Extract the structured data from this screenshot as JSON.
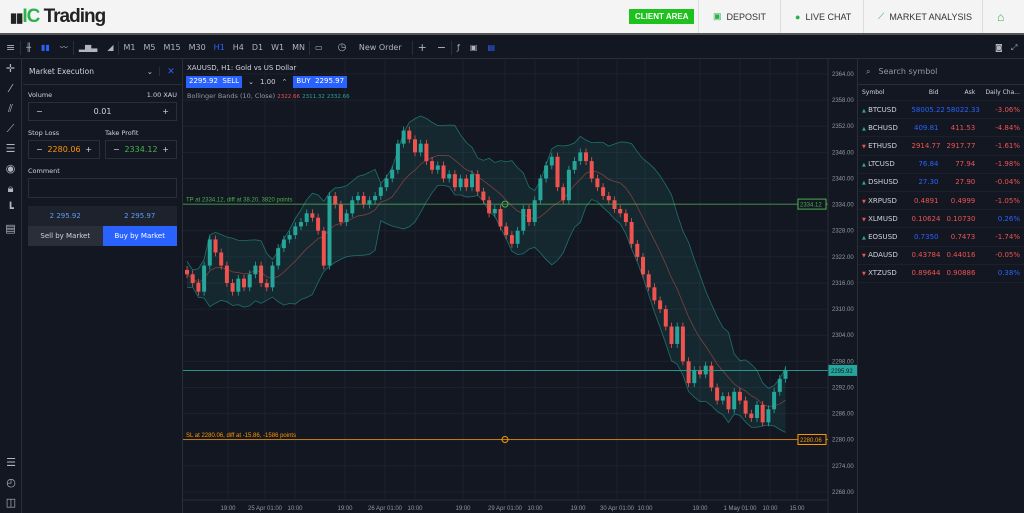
{
  "header": {
    "logo": "IC Trading",
    "logo_prefix": "IC",
    "logo_suffix": " Trading",
    "client_area": "CLIENT AREA",
    "deposit": "DEPOSIT",
    "live_chat": "LIVE CHAT",
    "market_analysis": "MARKET ANALYSIS"
  },
  "toolbar": {
    "timeframes": [
      "M1",
      "M5",
      "M15",
      "M30",
      "H1",
      "H4",
      "D1",
      "W1",
      "MN"
    ],
    "active_timeframe": "H1",
    "new_order": "New Order"
  },
  "order_panel": {
    "mode": "Market Execution",
    "volume_label": "Volume",
    "volume_unit": "1.00 XAU",
    "volume": "0.01",
    "stop_loss_label": "Stop Loss",
    "stop_loss": "2280.06",
    "take_profit_label": "Take Profit",
    "take_profit": "2334.12",
    "comment_label": "Comment",
    "comment": "",
    "sell_price": "2 295.92",
    "buy_price": "2 295.97",
    "sell_button": "Sell by Market",
    "buy_button": "Buy by Market"
  },
  "chart": {
    "title": "XAUUSD, H1: Gold vs US Dollar",
    "sell_price": "2295.92",
    "sell_label": "SELL",
    "quantity": "1.00",
    "buy_label": "BUY",
    "buy_price": "2295.97",
    "indicator": "Bollinger Bands (10, Close)",
    "indicator_values": [
      "2322.66",
      "2311.32",
      "2332.66"
    ],
    "tp_line": "TP at 2334.12, diff at 38.20, 3820 points",
    "sl_line": "SL at 2280.06, diff at -15.86, -1586 points",
    "tp_tag": "2334.12",
    "sl_tag": "2280.06",
    "price_tag": "2295.92"
  },
  "chart_data": {
    "type": "candlestick",
    "symbol": "XAUUSD",
    "timeframe": "H1",
    "ylim": [
      2265,
      2366
    ],
    "y_ticks": [
      "2364.00",
      "2358.00",
      "2352.00",
      "2346.00",
      "2340.00",
      "2334.00",
      "2328.00",
      "2322.00",
      "2316.00",
      "2310.00",
      "2304.00",
      "2298.00",
      "2292.00",
      "2286.00",
      "2280.00",
      "2274.00",
      "2268.00"
    ],
    "x_ticks": [
      "19:00",
      "25 Apr 01:00",
      "10:00",
      "19:00",
      "26 Apr 01:00",
      "10:00",
      "19:00",
      "29 Apr 01:00",
      "10:00",
      "19:00",
      "30 Apr 01:00",
      "10:00",
      "19:00",
      "1 May 01:00",
      "10:00",
      "15:00"
    ],
    "tp": 2334.12,
    "sl": 2280.06,
    "current": 2295.92,
    "closes": [
      2318,
      2316,
      2314,
      2320,
      2326,
      2323,
      2320,
      2316,
      2314,
      2317,
      2315,
      2318,
      2320,
      2316,
      2315,
      2320,
      2324,
      2326,
      2327,
      2329,
      2330,
      2332,
      2331,
      2328,
      2320,
      2336,
      2334,
      2330,
      2332,
      2335,
      2336,
      2334,
      2335,
      2336,
      2338,
      2340,
      2342,
      2348,
      2351,
      2349,
      2346,
      2348,
      2344,
      2342,
      2343,
      2340,
      2341,
      2338,
      2340,
      2338,
      2341,
      2337,
      2335,
      2332,
      2333,
      2329,
      2327,
      2325,
      2328,
      2333,
      2330,
      2335,
      2340,
      2343,
      2345,
      2338,
      2335,
      2342,
      2344,
      2346,
      2344,
      2340,
      2338,
      2336,
      2335,
      2333,
      2332,
      2330,
      2325,
      2322,
      2318,
      2315,
      2312,
      2310,
      2306,
      2302,
      2306,
      2298,
      2293,
      2296,
      2295,
      2297,
      2292,
      2289,
      2290,
      2287,
      2291,
      2289,
      2286,
      2285,
      2288,
      2284,
      2287,
      2291,
      2294,
      2296
    ],
    "bollinger": {
      "period": 10,
      "source": "Close"
    },
    "colors": {
      "up": "#26a69a",
      "down": "#ef5350",
      "tp": "#4caf50",
      "sl": "#ff9800"
    }
  },
  "watchlist": {
    "search_placeholder": "Search symbol",
    "columns": [
      "Symbol",
      "Bid",
      "Ask",
      "Daily Cha..."
    ],
    "rows": [
      {
        "symbol": "BTCUSD",
        "dir": "up",
        "bid": "58005.22",
        "ask": "58022.33",
        "change": "-3.06%",
        "bid_c": "bl",
        "ask_c": "bl",
        "ch_c": "dn"
      },
      {
        "symbol": "BCHUSD",
        "dir": "up",
        "bid": "409.81",
        "ask": "411.53",
        "change": "-4.84%",
        "bid_c": "bl",
        "ask_c": "dn",
        "ch_c": "dn"
      },
      {
        "symbol": "ETHUSD",
        "dir": "dn",
        "bid": "2914.77",
        "ask": "2917.77",
        "change": "-1.61%",
        "bid_c": "dn",
        "ask_c": "dn",
        "ch_c": "dn"
      },
      {
        "symbol": "LTCUSD",
        "dir": "up",
        "bid": "76.84",
        "ask": "77.94",
        "change": "-1.98%",
        "bid_c": "bl",
        "ask_c": "dn",
        "ch_c": "dn"
      },
      {
        "symbol": "DSHUSD",
        "dir": "up",
        "bid": "27.30",
        "ask": "27.90",
        "change": "-0.04%",
        "bid_c": "bl",
        "ask_c": "dn",
        "ch_c": "dn"
      },
      {
        "symbol": "XRPUSD",
        "dir": "dn",
        "bid": "0.4891",
        "ask": "0.4999",
        "change": "-1.05%",
        "bid_c": "dn",
        "ask_c": "dn",
        "ch_c": "dn"
      },
      {
        "symbol": "XLMUSD",
        "dir": "dn",
        "bid": "0.10624",
        "ask": "0.10730",
        "change": "0.26%",
        "bid_c": "dn",
        "ask_c": "dn",
        "ch_c": "bl"
      },
      {
        "symbol": "EOSUSD",
        "dir": "up",
        "bid": "0.7350",
        "ask": "0.7473",
        "change": "-1.74%",
        "bid_c": "bl",
        "ask_c": "dn",
        "ch_c": "dn"
      },
      {
        "symbol": "ADAUSD",
        "dir": "dn",
        "bid": "0.43784",
        "ask": "0.44016",
        "change": "-0.05%",
        "bid_c": "dn",
        "ask_c": "dn",
        "ch_c": "dn"
      },
      {
        "symbol": "XTZUSD",
        "dir": "dn",
        "bid": "0.89644",
        "ask": "0.90886",
        "change": "0.38%",
        "bid_c": "dn",
        "ask_c": "dn",
        "ch_c": "bl"
      }
    ]
  }
}
